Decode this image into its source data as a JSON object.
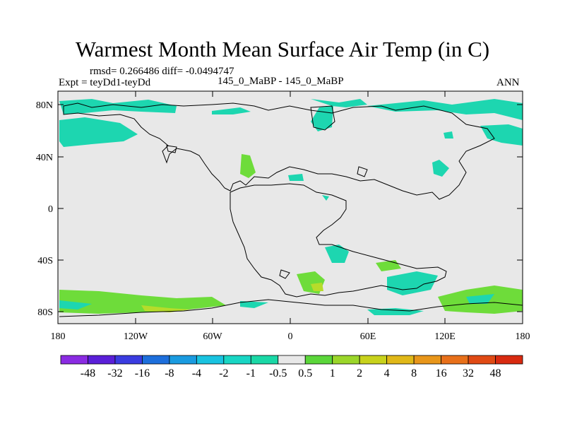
{
  "title": "Warmest Month Mean Surface Air Temp (in C)",
  "stats": "rmsd= 0.266486 diff= -0.0494747",
  "experiment": "Expt = teyDd1-teyDd",
  "center_label": "145_0_MaBP - 145_0_MaBP",
  "period": "ANN",
  "lat_labels": [
    "80N",
    "40N",
    "0",
    "40S",
    "80S"
  ],
  "lon_labels": [
    "180",
    "120W",
    "60W",
    "0",
    "60E",
    "120E",
    "180"
  ],
  "colorbar": {
    "labels": [
      "-48",
      "-32",
      "-16",
      "-8",
      "-4",
      "-2",
      "-1",
      "-0.5",
      "0.5",
      "1",
      "2",
      "4",
      "8",
      "16",
      "32",
      "48"
    ],
    "colors": [
      "#8a2be2",
      "#5a1fd8",
      "#3a3ce0",
      "#1d6fdc",
      "#1a9be0",
      "#19c3e0",
      "#19d6c4",
      "#1ad8a6",
      "#e8e8e8",
      "#5bd63a",
      "#9bd62a",
      "#c8d21c",
      "#e0b818",
      "#e8961a",
      "#e8701a",
      "#e04a14",
      "#d82a10"
    ]
  },
  "colors": {
    "neutral": "#e8e8e8",
    "cyan": "#1dd6b0",
    "green": "#6edc3a",
    "yellow": "#b6dc2a"
  }
}
